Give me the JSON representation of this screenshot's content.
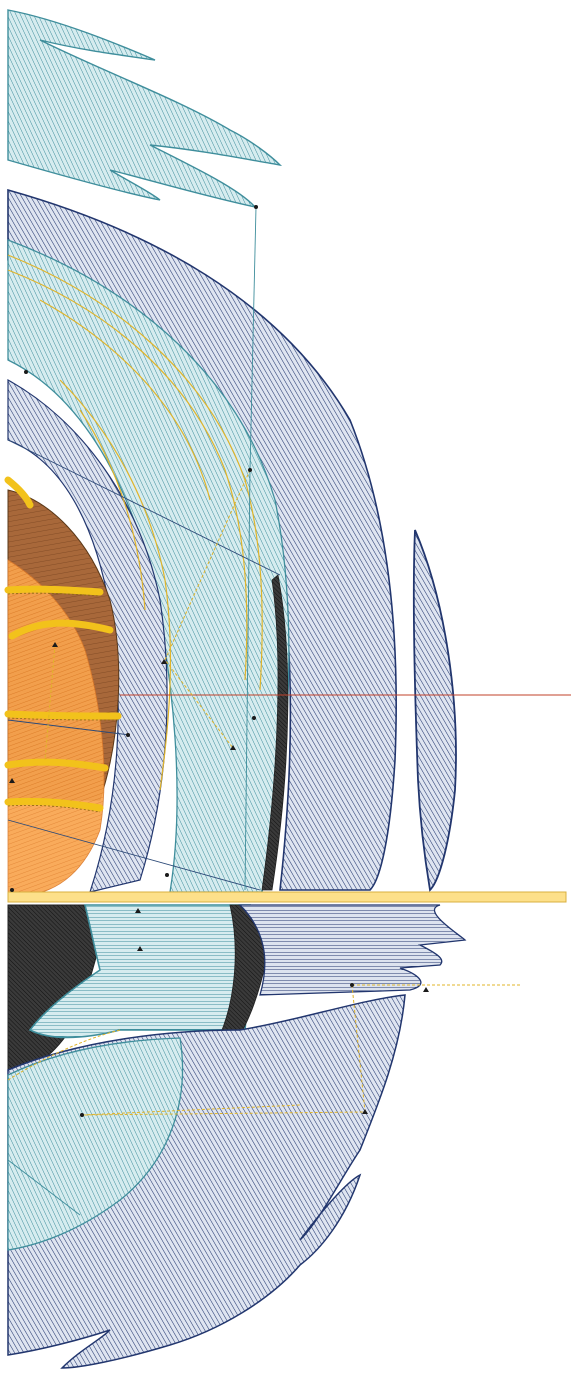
{
  "canvas": {
    "description_free": true,
    "colors": {
      "background": "#ffffff",
      "teal_fill": "#c6e4e8",
      "teal_stroke": "#3f8e9c",
      "navy_fill": "#c8d2e6",
      "navy_stroke": "#22366e",
      "brown_fill": "#a8683a",
      "brown_stroke": "#5a3818",
      "orange_fill": "#f9a44e",
      "orange_stroke": "#d9782a",
      "yellow": "#f2c21b",
      "yellow_dark": "#c99a10",
      "black_fill": "#2d2d2d",
      "guide_red": "#c0402a",
      "guide_blue": "#2d4a78",
      "guide_teal": "#3f8e9c",
      "guide_yellow": "#e0b42a",
      "bar_fill": "#fde08a",
      "bar_stroke": "#d9b040"
    },
    "icons": [
      "node-marker-icon",
      "triangle-marker-icon"
    ]
  }
}
